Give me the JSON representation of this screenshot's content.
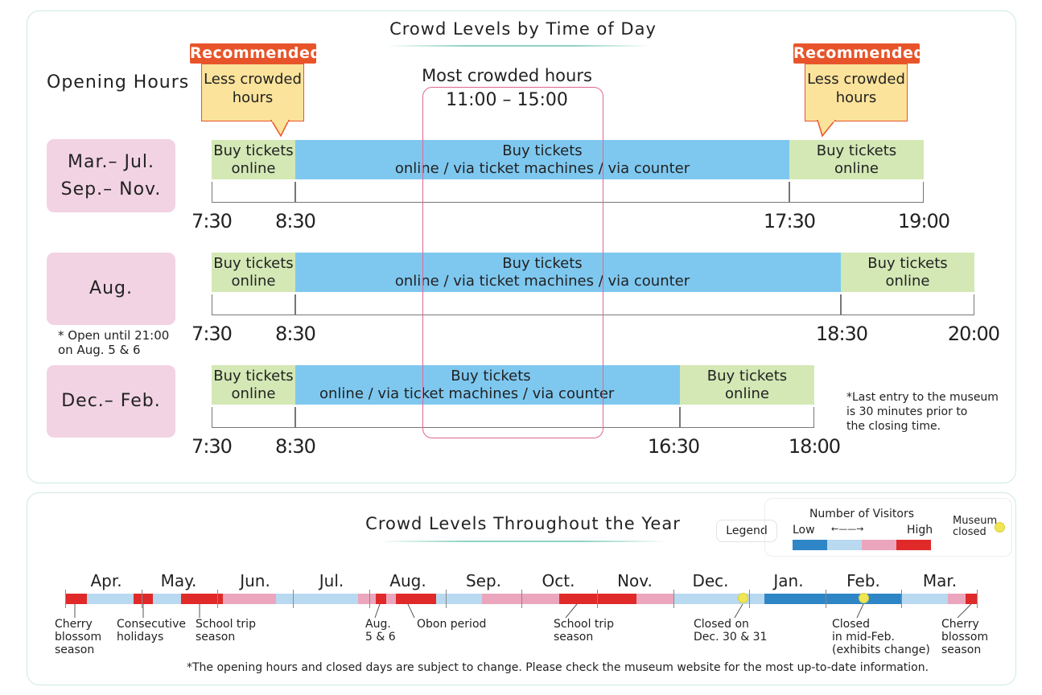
{
  "top": {
    "title": "Crowd Levels by Time of Day",
    "opening_hours_label": "Opening Hours",
    "recommended_label": "Recommended",
    "less_crowded": "Less crowded\nhours",
    "most_crowded_title": "Most crowded hours",
    "most_crowded_time": "11:00 – 15:00",
    "buy_online": "Buy tickets\nonline",
    "buy_all_line1": "Buy tickets",
    "buy_all_line2": "online / via ticket machines / via counter",
    "rows": [
      {
        "season": "Mar.– Jul.\nSep.– Nov.",
        "times": [
          "7:30",
          "8:30",
          "17:30",
          "19:00"
        ]
      },
      {
        "season": "Aug.",
        "times": [
          "7:30",
          "8:30",
          "18:30",
          "20:00"
        ],
        "note": "* Open until 21:00\n   on Aug. 5 & 6"
      },
      {
        "season": "Dec.– Feb.",
        "times": [
          "7:30",
          "8:30",
          "16:30",
          "18:00"
        ]
      }
    ],
    "last_entry_note": "*Last entry to the museum\n  is 30 minutes prior to\n  the closing time."
  },
  "bottom": {
    "title": "Crowd Levels Throughout the Year",
    "legend_label": "Legend",
    "legend_title": "Number of Visitors",
    "legend_low": "Low",
    "legend_high": "High",
    "legend_arrow": "←——→",
    "museum_closed": "Museum\nclosed",
    "months": [
      "Apr.",
      "May.",
      "Jun.",
      "Jul.",
      "Aug.",
      "Sep.",
      "Oct.",
      "Nov.",
      "Dec.",
      "Jan.",
      "Feb.",
      "Mar."
    ],
    "notes": {
      "cherry1": "Cherry\nblossom\nseason",
      "consecutive": "Consecutive\nholidays",
      "school1": "School trip\nseason",
      "aug56": "Aug.\n5 & 6",
      "obon": "Obon period",
      "school2": "School trip\nseason",
      "closed_dec": "Closed on\nDec. 30 & 31",
      "closed_feb": "Closed\nin mid-Feb.\n(exhibits change)",
      "cherry2": "Cherry\nblossom\nseason"
    },
    "disclaimer": "*The opening hours and closed days are subject to change. Please check the museum website for the most up-to-date information.",
    "colors": {
      "lowest": "#2f86c6",
      "low": "#b9d9f0",
      "mid": "#eba6bd",
      "high": "#e02a2a",
      "closed": "#f0e653"
    }
  }
}
